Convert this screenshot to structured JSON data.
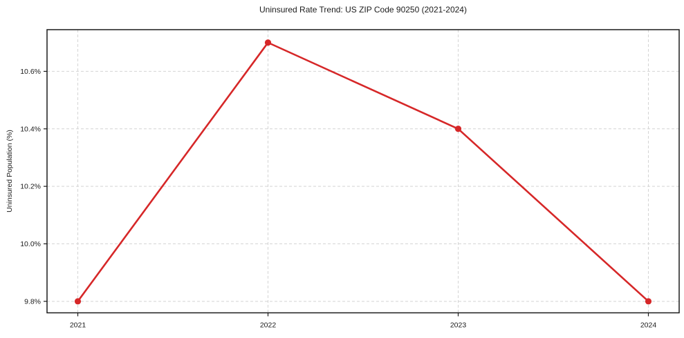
{
  "chart_data": {
    "type": "line",
    "title": "Uninsured Rate Trend: US ZIP Code 90250 (2021-2024)",
    "xlabel": "",
    "ylabel": "Uninsured Population (%)",
    "x_tick_labels": [
      "2021",
      "2022",
      "2023",
      "2024"
    ],
    "values": [
      9.8,
      10.7,
      10.4,
      9.8
    ],
    "y_tick_labels": [
      "9.8%",
      "10.0%",
      "10.2%",
      "10.4%",
      "10.6%"
    ],
    "y_tick_values": [
      9.8,
      10.0,
      10.2,
      10.4,
      10.6
    ],
    "ylim": [
      9.76,
      10.745
    ],
    "grid": true,
    "grid_style": "dashed",
    "legend_position": "none",
    "line_color": "#d62728",
    "marker": "circle",
    "marker_color": "#d62728",
    "axis_color": "#1a1a1a",
    "background_color": "#ffffff"
  }
}
